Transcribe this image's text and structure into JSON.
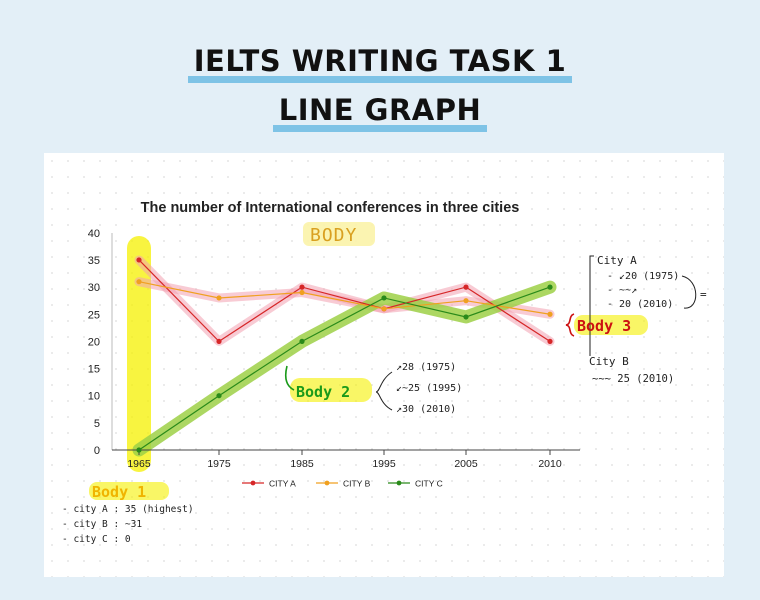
{
  "header": {
    "line1": "IELTS WRITING TASK 1",
    "line2": "LINE GRAPH"
  },
  "colors": {
    "background": "#e3eff7",
    "heading_underline": "#7ec3e6",
    "city_a": "#d62728",
    "city_b": "#f0a020",
    "city_c": "#2a8a1a",
    "highlight_yellow": "#f5f000",
    "highlight_pink": "#f2a0b0",
    "highlight_green": "#9ed046",
    "annotation_green": "#1a9a1a",
    "annotation_red": "#cc1111"
  },
  "chart_data": {
    "type": "line",
    "title": "The number of International conferences in three cities",
    "x": [
      "1965",
      "1975",
      "1985",
      "1995",
      "2005",
      "2010"
    ],
    "ylim": [
      0,
      40
    ],
    "yticks": [
      "0",
      "5",
      "10",
      "15",
      "20",
      "25",
      "30",
      "35",
      "40"
    ],
    "grid": false,
    "legend_position": "bottom",
    "series": [
      {
        "name": "CITY A",
        "values": [
          35,
          20,
          30,
          26,
          30,
          20
        ]
      },
      {
        "name": "CITY B",
        "values": [
          31,
          28,
          29,
          26,
          27.5,
          25
        ]
      },
      {
        "name": "CITY C",
        "values": [
          0,
          10,
          20,
          28,
          24.5,
          30
        ]
      }
    ]
  },
  "annotations": {
    "body_label": "BODY",
    "body1": {
      "title": "Body 1",
      "lines": [
        "- city A : 35 (highest)",
        "- city B : ~31",
        "- city C : 0"
      ]
    },
    "body2": {
      "title": "Body 2",
      "lines": [
        "↗28 (1975)",
        "↙~25 (1995)",
        "↗30 (2010)"
      ]
    },
    "body3": {
      "title": "Body 3",
      "city_a_label": "City A",
      "city_a_lines": [
        "- ↙20 (1975)",
        "- ~~↗",
        "- 20 (2010)"
      ],
      "equals": "=",
      "city_b_label": "City B",
      "city_b_line": "~~~ 25 (2010)"
    }
  }
}
